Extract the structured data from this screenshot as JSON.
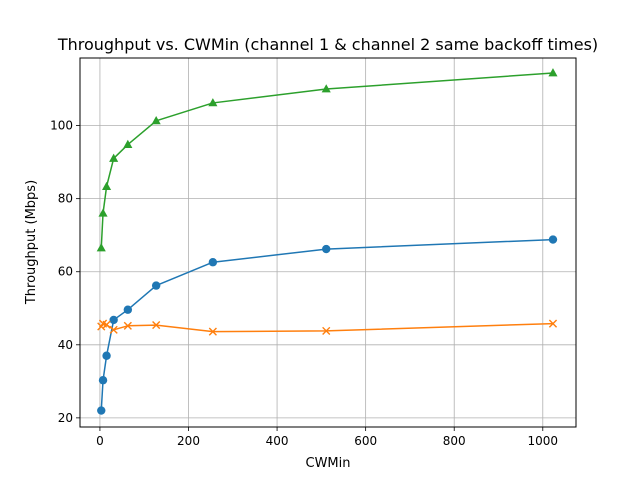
{
  "chart_data": {
    "type": "line",
    "title": "Throughput vs. CWMin (channel 1 & channel 2 same backoff times)",
    "xlabel": "CWMin",
    "ylabel": "Throughput (Mbps)",
    "xlim": [
      -45,
      1075
    ],
    "ylim": [
      17.5,
      118.5
    ],
    "xticks": [
      0,
      200,
      400,
      600,
      800,
      1000
    ],
    "yticks": [
      20,
      40,
      60,
      80,
      100
    ],
    "grid": true,
    "legend": "none",
    "series": [
      {
        "name": "series-1",
        "color": "#1f77b4",
        "marker": "circle",
        "x": [
          3,
          7,
          15,
          31,
          63,
          127,
          255,
          511,
          1023
        ],
        "y": [
          22.0,
          30.3,
          37.0,
          46.8,
          49.6,
          56.2,
          62.6,
          66.2,
          68.8
        ]
      },
      {
        "name": "series-2",
        "color": "#ff7f0e",
        "marker": "x",
        "x": [
          3,
          7,
          15,
          31,
          63,
          127,
          255,
          511,
          1023
        ],
        "y": [
          45.0,
          45.8,
          45.5,
          44.1,
          45.2,
          45.4,
          43.6,
          43.8,
          45.8
        ]
      },
      {
        "name": "series-3",
        "color": "#2ca02c",
        "marker": "triangle",
        "x": [
          3,
          7,
          15,
          31,
          63,
          127,
          255,
          511,
          1023
        ],
        "y": [
          66.5,
          76.0,
          83.3,
          91.0,
          94.8,
          101.3,
          106.2,
          110.0,
          114.4
        ]
      }
    ]
  }
}
